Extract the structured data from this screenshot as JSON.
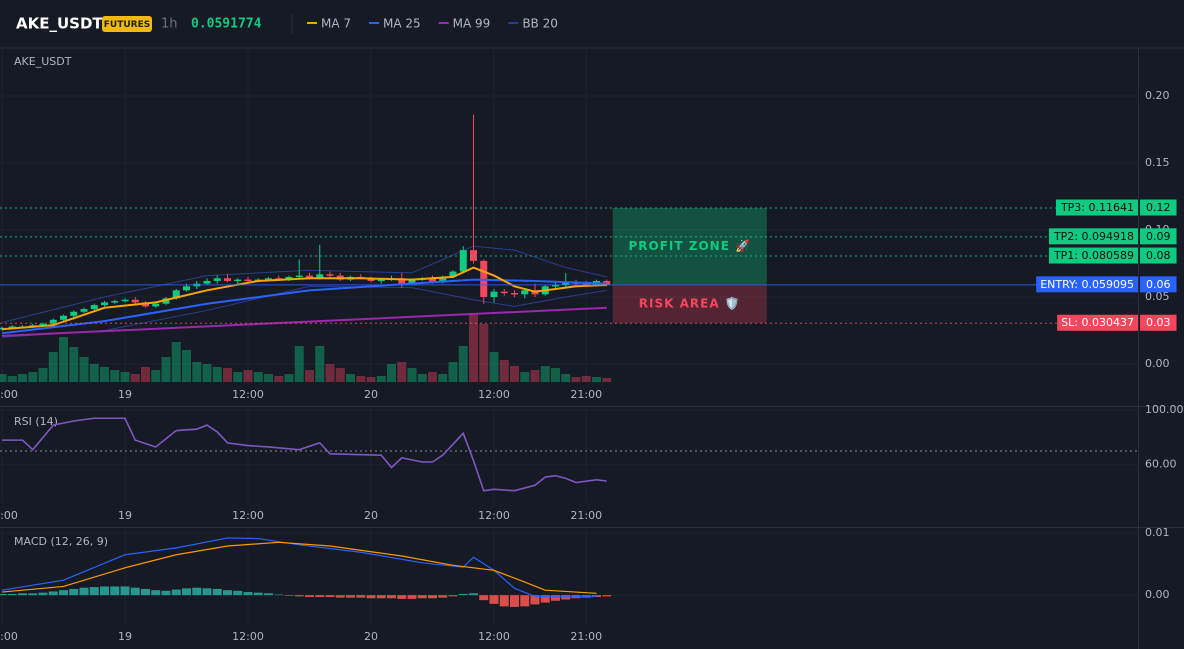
{
  "chart_data": [
    {
      "type": "candlestick",
      "title": "AKE_USDT",
      "badge": "FUTURES",
      "interval": "1h",
      "last_price": 0.0591774,
      "categories": [
        "12:00",
        null,
        null,
        null,
        null,
        null,
        null,
        null,
        null,
        null,
        null,
        null,
        "19",
        null,
        null,
        null,
        null,
        null,
        null,
        null,
        null,
        null,
        null,
        null,
        "12:00",
        null,
        null,
        null,
        null,
        null,
        null,
        null,
        null,
        null,
        null,
        null,
        "20",
        null,
        null,
        null,
        null,
        null,
        null,
        null,
        null,
        null,
        null,
        null,
        "12:00",
        null,
        null,
        null,
        null,
        null,
        null,
        null,
        null,
        "21:00",
        null,
        null
      ],
      "open": [
        0.026,
        0.027,
        0.028,
        0.028,
        0.029,
        0.03,
        0.033,
        0.036,
        0.039,
        0.041,
        0.044,
        0.046,
        0.047,
        0.048,
        0.046,
        0.043,
        0.045,
        0.049,
        0.055,
        0.058,
        0.06,
        0.062,
        0.064,
        0.062,
        0.063,
        0.062,
        0.063,
        0.064,
        0.063,
        0.065,
        0.066,
        0.064,
        0.067,
        0.066,
        0.063,
        0.065,
        0.064,
        0.062,
        0.063,
        0.064,
        0.06,
        0.063,
        0.064,
        0.061,
        0.065,
        0.069,
        0.085,
        0.077,
        0.05,
        0.054,
        0.053,
        0.052,
        0.055,
        0.052,
        0.058,
        0.059,
        0.061,
        0.06,
        0.059,
        0.062
      ],
      "high": [
        0.028,
        0.029,
        0.029,
        0.03,
        0.031,
        0.034,
        0.037,
        0.04,
        0.042,
        0.045,
        0.047,
        0.048,
        0.049,
        0.05,
        0.047,
        0.046,
        0.05,
        0.056,
        0.06,
        0.062,
        0.064,
        0.066,
        0.067,
        0.064,
        0.065,
        0.064,
        0.065,
        0.066,
        0.066,
        0.078,
        0.068,
        0.089,
        0.069,
        0.068,
        0.066,
        0.067,
        0.065,
        0.064,
        0.066,
        0.068,
        0.064,
        0.065,
        0.066,
        0.066,
        0.07,
        0.088,
        0.186,
        0.078,
        0.056,
        0.056,
        0.055,
        0.056,
        0.06,
        0.059,
        0.062,
        0.068,
        0.063,
        0.062,
        0.063,
        0.063
      ],
      "low": [
        0.025,
        0.026,
        0.027,
        0.027,
        0.028,
        0.029,
        0.032,
        0.035,
        0.038,
        0.04,
        0.043,
        0.045,
        0.046,
        0.045,
        0.042,
        0.042,
        0.044,
        0.048,
        0.054,
        0.056,
        0.059,
        0.06,
        0.061,
        0.06,
        0.061,
        0.061,
        0.062,
        0.062,
        0.062,
        0.064,
        0.063,
        0.063,
        0.064,
        0.062,
        0.062,
        0.063,
        0.061,
        0.06,
        0.062,
        0.057,
        0.059,
        0.062,
        0.06,
        0.06,
        0.064,
        0.068,
        0.075,
        0.045,
        0.046,
        0.051,
        0.05,
        0.049,
        0.05,
        0.051,
        0.056,
        0.057,
        0.058,
        0.058,
        0.058,
        0.058
      ],
      "close": [
        0.027,
        0.028,
        0.028,
        0.029,
        0.03,
        0.033,
        0.036,
        0.039,
        0.041,
        0.044,
        0.046,
        0.047,
        0.048,
        0.046,
        0.043,
        0.045,
        0.049,
        0.055,
        0.058,
        0.06,
        0.062,
        0.064,
        0.062,
        0.063,
        0.062,
        0.063,
        0.064,
        0.063,
        0.065,
        0.066,
        0.064,
        0.067,
        0.066,
        0.063,
        0.065,
        0.064,
        0.062,
        0.063,
        0.064,
        0.06,
        0.063,
        0.064,
        0.061,
        0.065,
        0.069,
        0.085,
        0.077,
        0.05,
        0.054,
        0.053,
        0.052,
        0.055,
        0.052,
        0.058,
        0.059,
        0.061,
        0.06,
        0.059,
        0.062,
        0.059
      ],
      "up_color": "#0ecb81",
      "down_color": "#f6465d",
      "volume": [
        8,
        6,
        8,
        10,
        14,
        30,
        45,
        35,
        25,
        18,
        15,
        12,
        10,
        8,
        15,
        12,
        25,
        40,
        32,
        20,
        18,
        15,
        14,
        10,
        12,
        10,
        8,
        6,
        8,
        36,
        12,
        36,
        18,
        14,
        8,
        6,
        5,
        6,
        18,
        20,
        14,
        8,
        10,
        8,
        20,
        36,
        68,
        58,
        30,
        22,
        16,
        10,
        12,
        16,
        14,
        8,
        5,
        6,
        5,
        4
      ],
      "overlays": [
        {
          "name": "MA 7",
          "color": "#f7a600",
          "x": [
            0,
            5,
            10,
            15,
            20,
            25,
            30,
            35,
            40,
            44,
            46,
            48,
            50,
            52,
            54,
            56,
            59
          ],
          "values": [
            0.026,
            0.029,
            0.042,
            0.046,
            0.055,
            0.062,
            0.064,
            0.064,
            0.063,
            0.065,
            0.072,
            0.066,
            0.058,
            0.054,
            0.056,
            0.058,
            0.059
          ]
        },
        {
          "name": "MA 25",
          "color": "#2962ff",
          "x": [
            0,
            10,
            20,
            30,
            40,
            46,
            52,
            59
          ],
          "values": [
            0.023,
            0.032,
            0.045,
            0.055,
            0.06,
            0.063,
            0.062,
            0.06
          ]
        },
        {
          "name": "MA 99",
          "color": "#9c27b0",
          "x": [
            0,
            59
          ],
          "values": [
            0.021,
            0.042
          ]
        },
        {
          "name": "BB 20",
          "color": "#2a3d8f",
          "x": [
            0,
            10,
            20,
            30,
            40,
            46,
            50,
            55,
            59
          ],
          "upper": [
            0.031,
            0.05,
            0.066,
            0.07,
            0.068,
            0.088,
            0.085,
            0.072,
            0.065
          ],
          "lower": [
            0.02,
            0.025,
            0.04,
            0.058,
            0.057,
            0.048,
            0.043,
            0.05,
            0.055
          ]
        }
      ],
      "levels": [
        {
          "label": "TP3: 0.11641",
          "value": 0.11641,
          "axis_label": "0.12",
          "color": "#0ecb81",
          "text_color": "#0b0e11"
        },
        {
          "label": "TP2: 0.094918",
          "value": 0.094918,
          "axis_label": "0.09",
          "color": "#0ecb81",
          "text_color": "#0b0e11"
        },
        {
          "label": "TP1: 0.080589",
          "value": 0.080589,
          "axis_label": "0.08",
          "color": "#0ecb81",
          "text_color": "#0b0e11"
        },
        {
          "label": "ENTRY: 0.059095",
          "value": 0.059095,
          "axis_label": "0.06",
          "color": "#2962ff",
          "text_color": "#ffffff"
        },
        {
          "label": "SL: 0.030437",
          "value": 0.030437,
          "axis_label": "0.03",
          "color": "#f6465d",
          "text_color": "#ffffff"
        }
      ],
      "zones": [
        "PROFIT ZONE 🚀",
        "RISK AREA 🛡️"
      ],
      "ylim": [
        -0.0134,
        0.2358
      ],
      "yticks": [
        {
          "value": 0,
          "label": "0.00"
        },
        {
          "value": 0.05,
          "label": "0.05"
        },
        {
          "value": 0.1,
          "label": "0.10"
        },
        {
          "value": 0.15,
          "label": "0.15"
        },
        {
          "value": 0.2,
          "label": "0.20"
        }
      ]
    },
    {
      "type": "line",
      "title": "RSI (14)",
      "categories": [
        "12:00",
        null,
        null,
        null,
        null,
        null,
        null,
        null,
        null,
        null,
        null,
        null,
        "19",
        null,
        null,
        null,
        null,
        null,
        null,
        null,
        null,
        null,
        null,
        null,
        "12:00",
        null,
        null,
        null,
        null,
        null,
        null,
        null,
        null,
        null,
        null,
        null,
        "20",
        null,
        null,
        null,
        null,
        null,
        null,
        null,
        null,
        null,
        null,
        null,
        "12:00",
        null,
        null,
        null,
        null,
        null,
        null,
        null,
        null,
        "21:00",
        null,
        null
      ],
      "x": [
        0,
        2,
        3,
        5,
        7,
        9,
        12,
        13,
        15,
        17,
        19,
        20,
        21,
        22,
        24,
        26,
        29,
        31,
        32,
        37,
        38,
        39,
        41,
        42,
        43,
        45,
        46,
        47,
        48,
        50,
        52,
        53,
        54,
        55,
        56,
        58,
        59
      ],
      "values": [
        78,
        78,
        71,
        89,
        92,
        94,
        94,
        78,
        73,
        85,
        86,
        89,
        84,
        76,
        74,
        73,
        71,
        76,
        68,
        67,
        58,
        65,
        62,
        62,
        67,
        83,
        63,
        41,
        42,
        41,
        45,
        51,
        52,
        50,
        47,
        49,
        48
      ],
      "color": "#7e57c2",
      "reference_line": 70,
      "ylim": [
        32,
        101.5
      ],
      "yticks": [
        {
          "value": 100,
          "label": "100.00"
        },
        {
          "value": 60,
          "label": "60.00"
        }
      ]
    },
    {
      "type": "macd",
      "title": "MACD (12, 26, 9)",
      "categories": [
        "12:00",
        null,
        null,
        null,
        null,
        null,
        null,
        null,
        null,
        null,
        null,
        null,
        "19",
        null,
        null,
        null,
        null,
        null,
        null,
        null,
        null,
        null,
        null,
        null,
        "12:00",
        null,
        null,
        null,
        null,
        null,
        null,
        null,
        null,
        null,
        null,
        null,
        "20",
        null,
        null,
        null,
        null,
        null,
        null,
        null,
        null,
        null,
        null,
        null,
        "12:00",
        null,
        null,
        null,
        null,
        null,
        null,
        null,
        null,
        "21:00",
        null,
        null
      ],
      "histogram": [
        0.0002,
        0.0002,
        0.0003,
        0.0003,
        0.0004,
        0.0006,
        0.0008,
        0.001,
        0.0012,
        0.0013,
        0.0014,
        0.0014,
        0.0014,
        0.0012,
        0.001,
        0.0008,
        0.0007,
        0.0009,
        0.0011,
        0.0012,
        0.0011,
        0.001,
        0.0008,
        0.0007,
        0.0005,
        0.0004,
        0.0003,
        0.0001,
        -0.0001,
        -0.0002,
        -0.0003,
        -0.0003,
        -0.0003,
        -0.0004,
        -0.0004,
        -0.0004,
        -0.0005,
        -0.0005,
        -0.0005,
        -0.0006,
        -0.0006,
        -0.0005,
        -0.0005,
        -0.0004,
        -0.0002,
        0.0002,
        0.0003,
        -0.0008,
        -0.0014,
        -0.0018,
        -0.0019,
        -0.0018,
        -0.0015,
        -0.0012,
        -0.0009,
        -0.0007,
        -0.0005,
        -0.0004,
        -0.0003,
        -0.0002
      ],
      "up_color": "#26a69a",
      "down_color": "#ef5350",
      "series": [
        {
          "color": "#2962ff",
          "x": [
            0,
            6,
            12,
            17,
            22,
            25,
            29,
            35,
            41,
            45,
            46,
            48,
            50,
            52,
            54,
            58
          ],
          "values": [
            0.0008,
            0.0024,
            0.0065,
            0.0076,
            0.0092,
            0.0091,
            0.0081,
            0.0069,
            0.0052,
            0.0045,
            0.0061,
            0.004,
            0.0011,
            -0.0002,
            -0.0003,
            -0.0002
          ]
        },
        {
          "color": "#ff9800",
          "x": [
            0,
            6,
            12,
            17,
            22,
            27,
            32,
            39,
            44,
            48,
            51,
            53,
            58
          ],
          "values": [
            0.0005,
            0.0014,
            0.0044,
            0.0065,
            0.0079,
            0.0085,
            0.0079,
            0.0063,
            0.0048,
            0.004,
            0.0021,
            0.0008,
            0.0003
          ]
        }
      ],
      "ylim": [
        -0.0048,
        0.0108
      ],
      "yticks": [
        {
          "value": 0.01,
          "label": "0.01"
        },
        {
          "value": 0,
          "label": "0.00"
        }
      ]
    }
  ]
}
